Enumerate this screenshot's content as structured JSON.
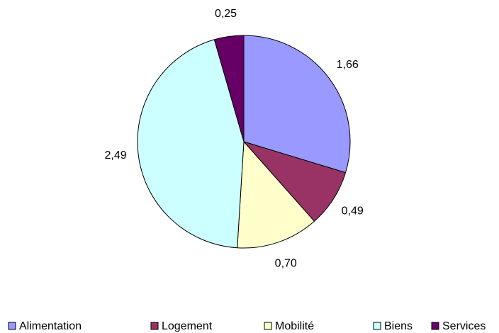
{
  "chart_data": {
    "type": "pie",
    "categories": [
      "Alimentation",
      "Logement",
      "Mobilité",
      "Biens",
      "Services"
    ],
    "values": [
      1.66,
      0.49,
      0.7,
      2.49,
      0.25
    ],
    "value_labels": [
      "1,66",
      "0,49",
      "0,70",
      "2,49",
      "0,25"
    ],
    "colors": [
      "#9999ff",
      "#993366",
      "#ffffcc",
      "#ccffff",
      "#660066"
    ],
    "legend": "bottom"
  }
}
